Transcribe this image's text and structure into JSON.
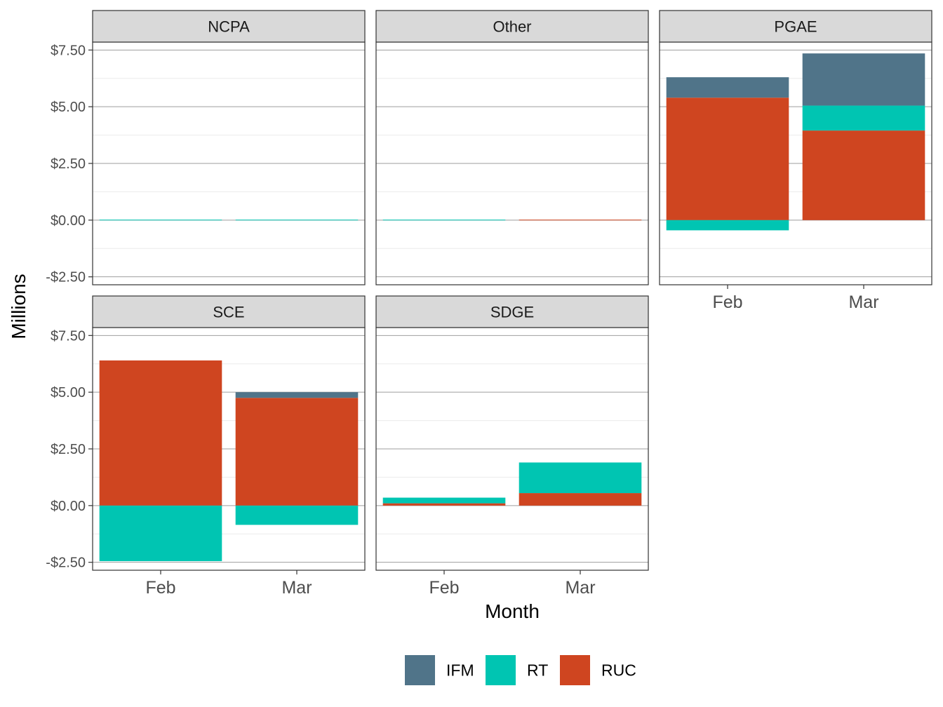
{
  "chart_data": {
    "type": "bar",
    "stacked": true,
    "xlabel": "Month",
    "ylabel": "Millions",
    "categories": [
      "Feb",
      "Mar"
    ],
    "ylim": [
      -2.85,
      7.85
    ],
    "yticks": [
      -2.5,
      0,
      2.5,
      5,
      7.5
    ],
    "ytick_labels": [
      "-$2.50",
      "$0.00",
      "$2.50",
      "$5.00",
      "$7.50"
    ],
    "grid": true,
    "legend_position": "bottom",
    "series_order": [
      "IFM",
      "RT",
      "RUC"
    ],
    "colors": {
      "IFM": "#507489",
      "RT": "#00C5B2",
      "RUC": "#CF4520"
    },
    "panels": [
      {
        "name": "NCPA",
        "series": [
          {
            "name": "IFM",
            "values": [
              0,
              0
            ]
          },
          {
            "name": "RT",
            "values": [
              0.02,
              0.02
            ]
          },
          {
            "name": "RUC",
            "values": [
              0,
              0
            ]
          }
        ]
      },
      {
        "name": "Other",
        "series": [
          {
            "name": "IFM",
            "values": [
              0,
              0
            ]
          },
          {
            "name": "RT",
            "values": [
              0.02,
              0
            ]
          },
          {
            "name": "RUC",
            "values": [
              0,
              0.02
            ]
          }
        ]
      },
      {
        "name": "PGAE",
        "series": [
          {
            "name": "IFM",
            "values": [
              0.9,
              2.3
            ]
          },
          {
            "name": "RT",
            "values": [
              -0.45,
              1.1
            ]
          },
          {
            "name": "RUC",
            "values": [
              5.4,
              3.95
            ]
          }
        ]
      },
      {
        "name": "SCE",
        "series": [
          {
            "name": "IFM",
            "values": [
              0,
              0.25
            ]
          },
          {
            "name": "RT",
            "values": [
              -2.45,
              -0.85
            ]
          },
          {
            "name": "RUC",
            "values": [
              6.4,
              4.75
            ]
          }
        ]
      },
      {
        "name": "SDGE",
        "series": [
          {
            "name": "IFM",
            "values": [
              0,
              0
            ]
          },
          {
            "name": "RT",
            "values": [
              0.25,
              1.35
            ]
          },
          {
            "name": "RUC",
            "values": [
              0.1,
              0.55
            ]
          }
        ]
      }
    ]
  }
}
